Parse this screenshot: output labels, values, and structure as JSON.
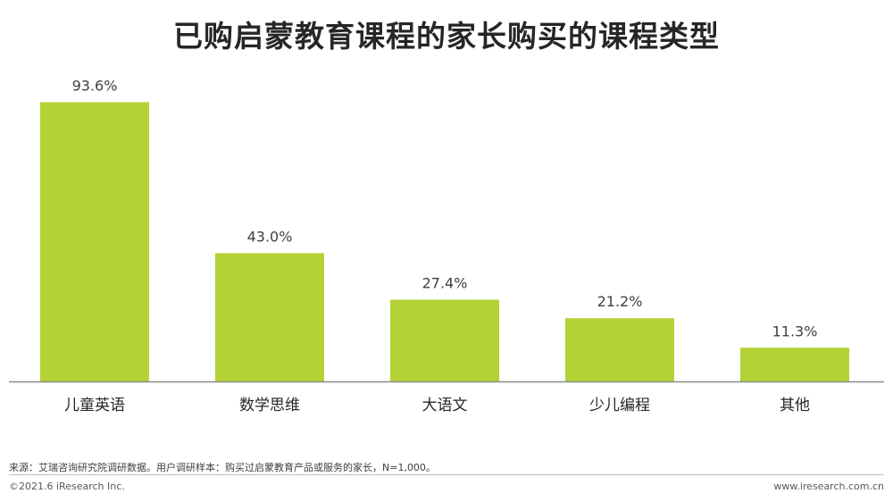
{
  "title": "已购启蒙教育课程的家长购买的课程类型",
  "footer": {
    "source": "来源：艾瑞咨询研究院调研数据。用户调研样本：购买过启蒙教育产品或服务的家长，N=1,000。",
    "copyright": "©2021.6 iResearch Inc.",
    "website": "www.iresearch.com.cn"
  },
  "chart_data": {
    "type": "bar",
    "categories": [
      "儿童英语",
      "数学思维",
      "大语文",
      "少儿编程",
      "其他"
    ],
    "values": [
      93.6,
      43.0,
      27.4,
      21.2,
      11.3
    ],
    "value_labels": [
      "93.6%",
      "43.0%",
      "27.4%",
      "21.2%",
      "11.3%"
    ],
    "ylim": [
      0,
      100
    ],
    "bar_color": "#b2d235",
    "grid": false,
    "legend": "none"
  }
}
